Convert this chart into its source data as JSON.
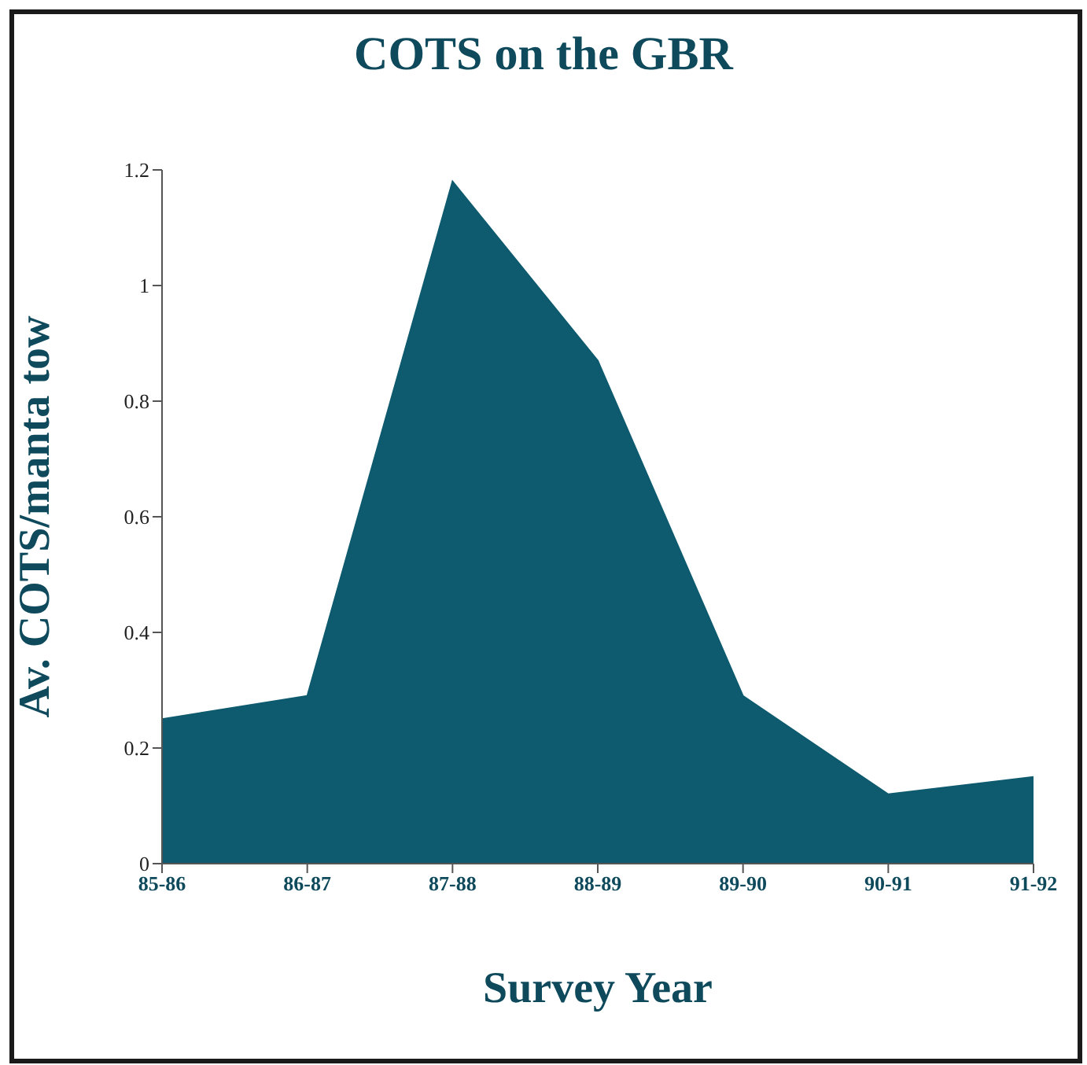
{
  "chart_data": {
    "type": "area",
    "title": "COTS on the GBR",
    "xlabel": "Survey Year",
    "ylabel": "Av. COTS/manta tow",
    "categories": [
      "85-86",
      "86-87",
      "87-88",
      "88-89",
      "89-90",
      "90-91",
      "91-92"
    ],
    "series": [
      {
        "color": "#0e5a6e",
        "values": [
          0.25,
          0.29,
          1.18,
          0.87,
          0.29,
          0.12,
          0.15
        ]
      }
    ],
    "ylim": [
      0,
      1.2
    ],
    "yticks": [
      0,
      0.2,
      0.4,
      0.6,
      0.8,
      1,
      1.2
    ],
    "grid": false,
    "legend": false
  }
}
